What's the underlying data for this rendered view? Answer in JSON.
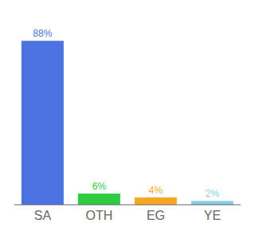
{
  "chart_data": {
    "type": "bar",
    "categories": [
      "SA",
      "OTH",
      "EG",
      "YE"
    ],
    "values": [
      88,
      6,
      4,
      2
    ],
    "value_labels": [
      "88%",
      "6%",
      "4%",
      "2%"
    ],
    "colors": [
      "#4a72e0",
      "#2ecc40",
      "#f5a623",
      "#87ceeb"
    ],
    "ylim": [
      0,
      98
    ],
    "data_labels": true,
    "tick_labels": "x",
    "grid": false
  }
}
